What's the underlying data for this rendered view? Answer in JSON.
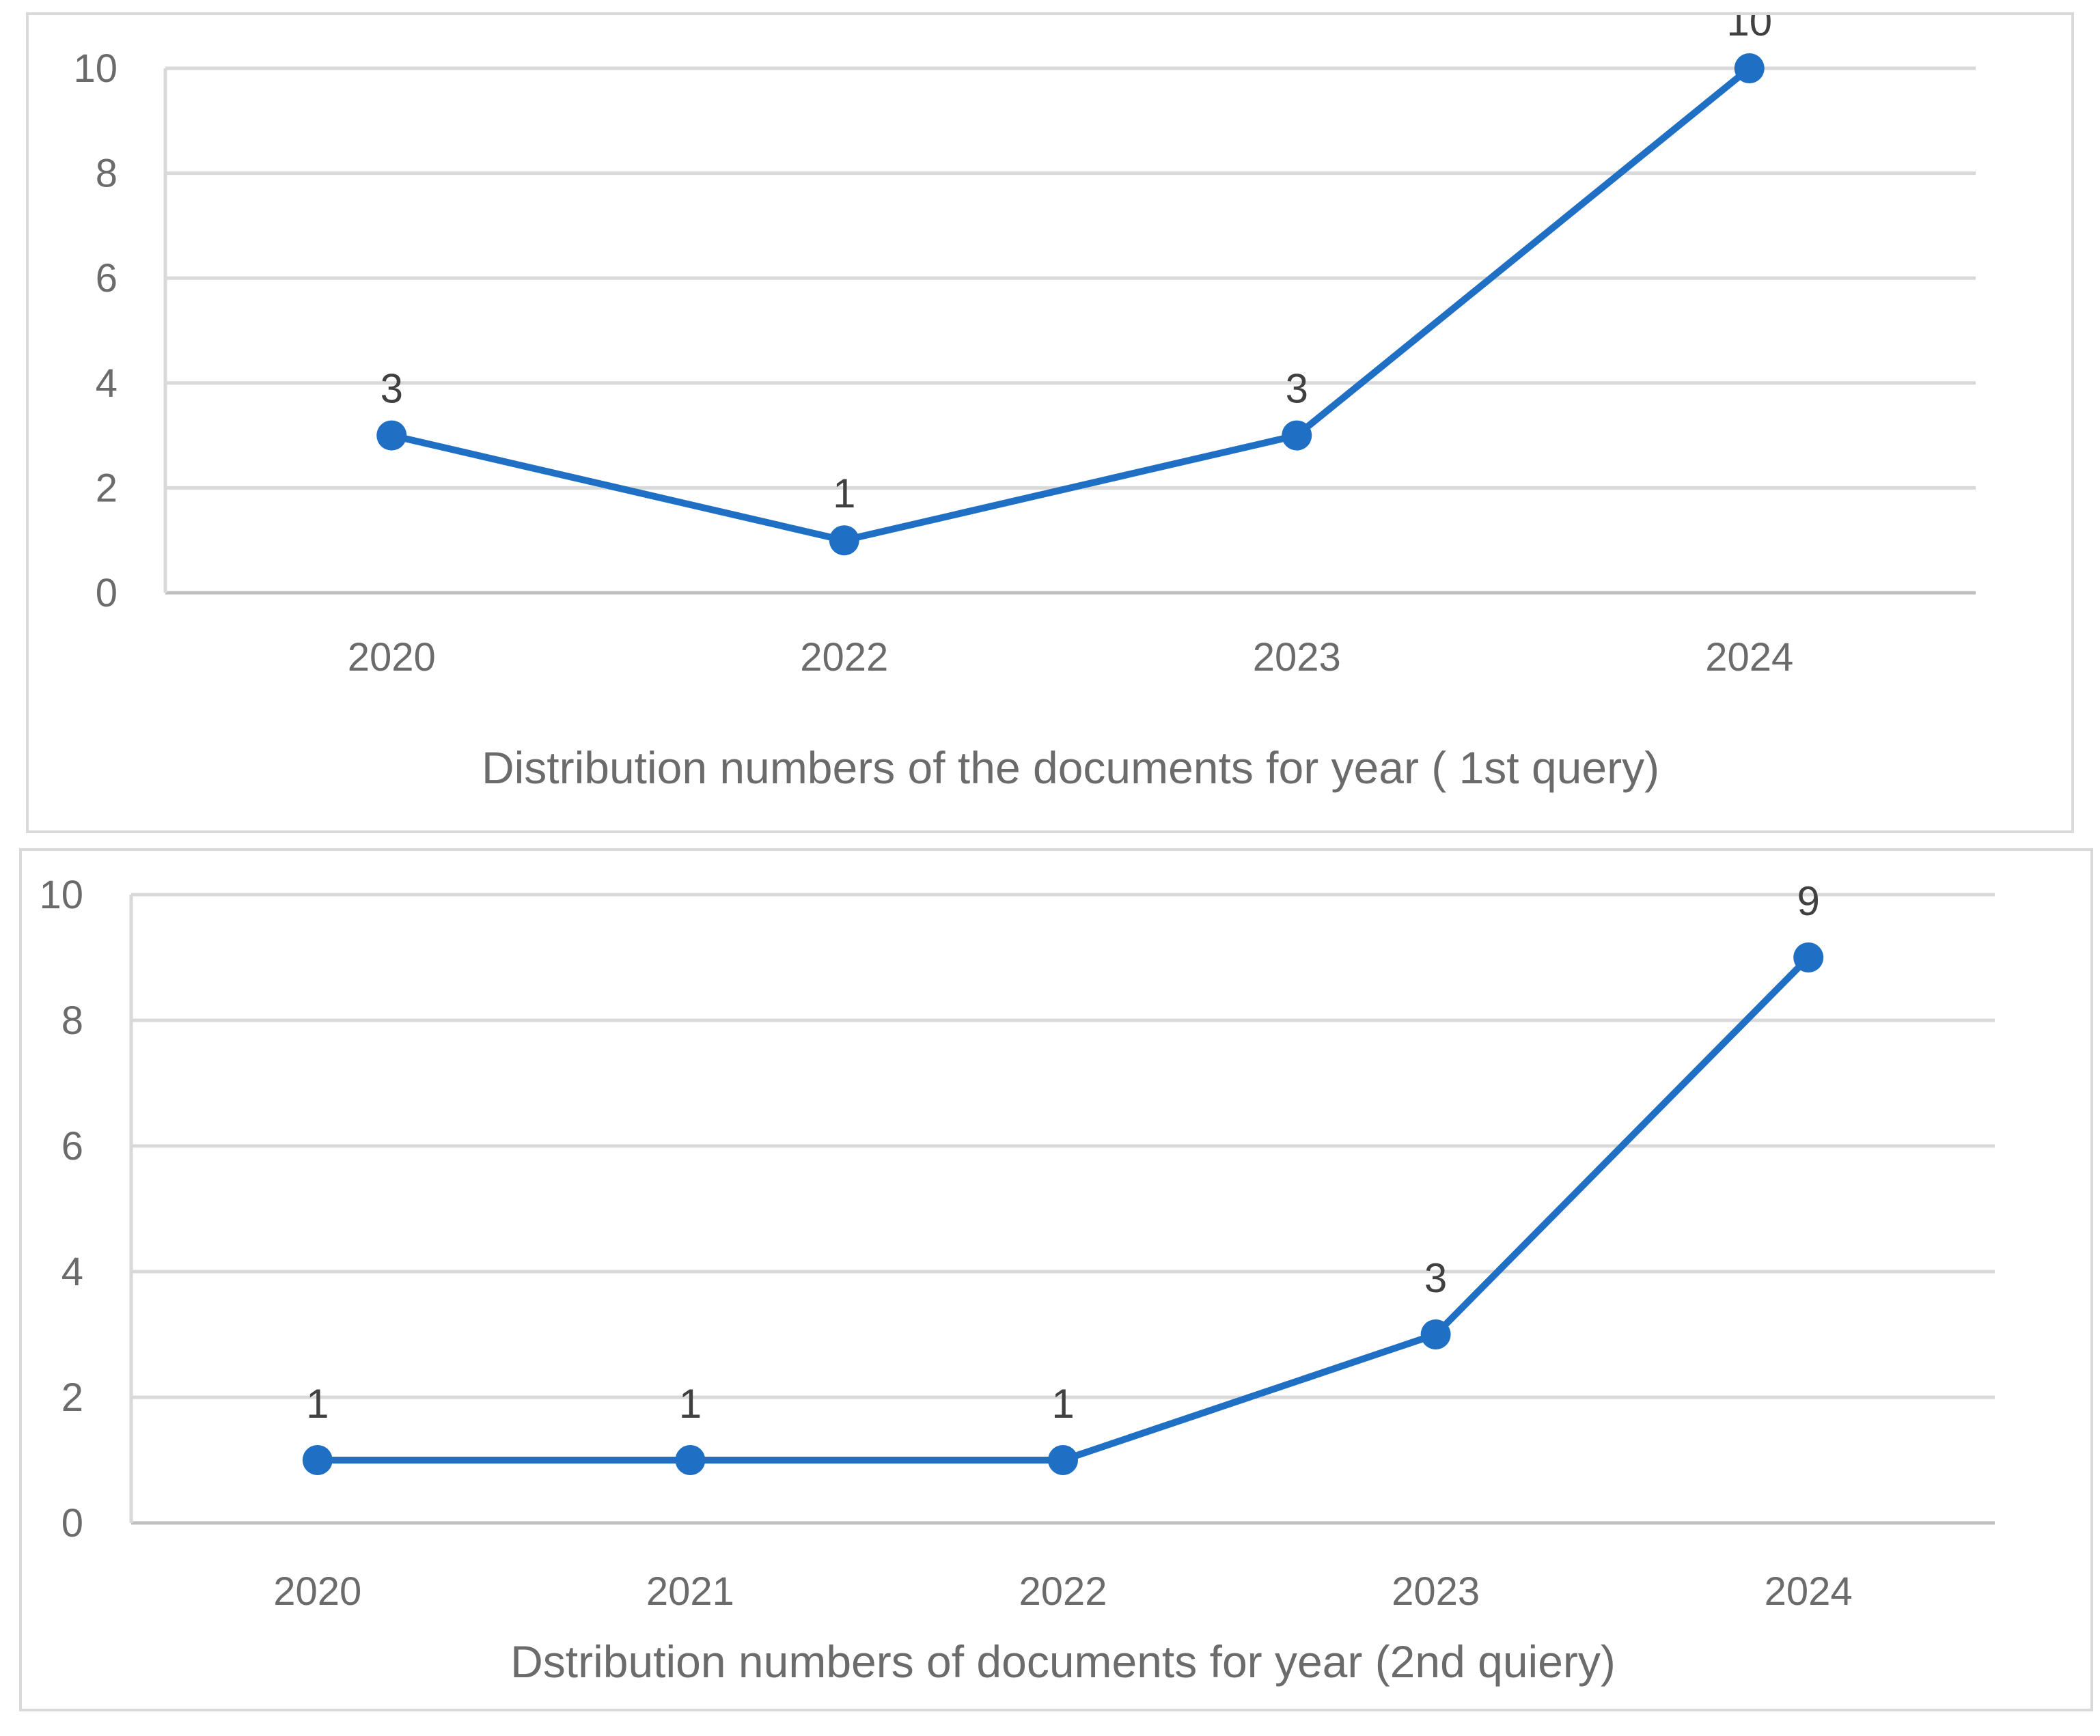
{
  "chart_data": [
    {
      "type": "line",
      "title": "Distribution numbers of the documents for year ( 1st query)",
      "categories": [
        "2020",
        "2022",
        "2023",
        "2024"
      ],
      "series": [
        {
          "values": [
            3,
            1,
            3,
            10
          ],
          "color": "#1f6fc5"
        }
      ],
      "data_labels": [
        "3",
        "1",
        "3",
        "10"
      ],
      "ylim": [
        0,
        10
      ],
      "yticks": [
        "0",
        "2",
        "4",
        "6",
        "8",
        "10"
      ],
      "grid": true,
      "legend": "none",
      "title_position": "bottom"
    },
    {
      "type": "line",
      "title": "Dstribution numbers of documents for year (2nd quiery)",
      "categories": [
        "2020",
        "2021",
        "2022",
        "2023",
        "2024"
      ],
      "series": [
        {
          "values": [
            1,
            1,
            1,
            3,
            9
          ],
          "color": "#1f6fc5"
        }
      ],
      "data_labels": [
        "1",
        "1",
        "1",
        "3",
        "9"
      ],
      "ylim": [
        0,
        10
      ],
      "yticks": [
        "0",
        "2",
        "4",
        "6",
        "8",
        "10"
      ],
      "grid": true,
      "legend": "none",
      "title_position": "bottom"
    }
  ]
}
